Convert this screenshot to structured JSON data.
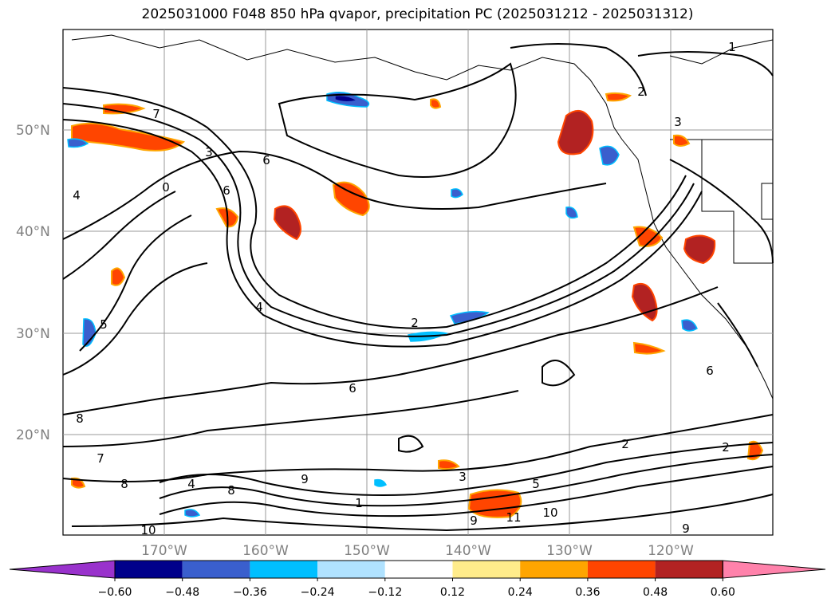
{
  "title": "2025031000 F048 850 hPa qvapor, precipitation PC (2025031212 - 2025031312)",
  "lat_labels": [
    "50°N",
    "40°N",
    "30°N",
    "20°N"
  ],
  "lon_labels": [
    "170°W",
    "160°W",
    "150°W",
    "140°W",
    "130°W",
    "120°W"
  ],
  "colorbar": {
    "bins": [
      "#9932cc",
      "#00008b",
      "#3a5fcd",
      "#00bfff",
      "#b0e2ff",
      "#ffffff",
      "#ffec8b",
      "#ffa500",
      "#ff4500",
      "#b22222",
      "#ff82ab"
    ],
    "ticks": [
      "−0.60",
      "−0.48",
      "−0.36",
      "−0.24",
      "−0.12",
      "0.12",
      "0.24",
      "0.36",
      "0.48",
      "0.60"
    ]
  },
  "contour_labels": [
    "1",
    "2",
    "3",
    "4",
    "5",
    "6",
    "7",
    "8",
    "9",
    "0",
    "1",
    "10",
    "11",
    "7",
    "8",
    "2",
    "6",
    "3",
    "5",
    "4",
    "9",
    "10",
    "8",
    "6",
    "3",
    "2",
    "6",
    "2",
    "9",
    "4"
  ]
}
